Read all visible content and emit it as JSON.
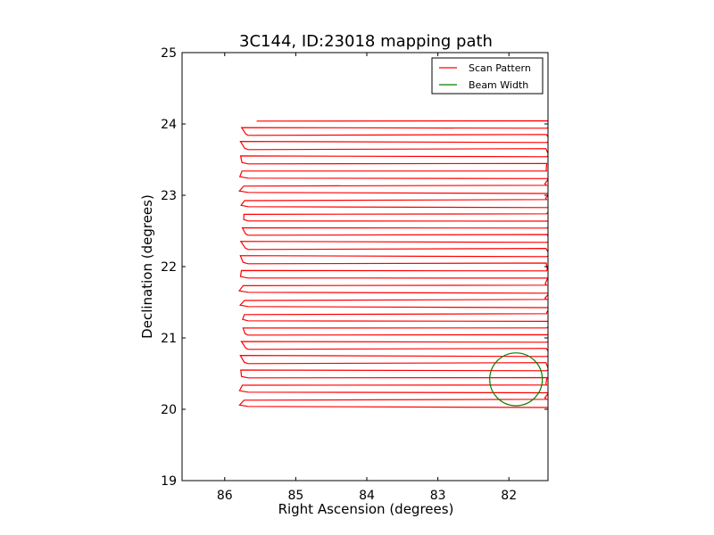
{
  "chart_data": {
    "type": "line",
    "title": "3C144, ID:23018 mapping path",
    "xlabel": "Right Ascension (degrees)",
    "ylabel": "Declination (degrees)",
    "xlim": [
      86.6,
      81.45
    ],
    "ylim": [
      19,
      25
    ],
    "x_inverted": true,
    "x_ticks": [
      86,
      85,
      84,
      83,
      82
    ],
    "x_tick_labels": [
      "86",
      "85",
      "84",
      "83",
      "82"
    ],
    "y_ticks": [
      19,
      20,
      21,
      22,
      23,
      24,
      25
    ],
    "y_tick_labels": [
      "19",
      "20",
      "21",
      "22",
      "23",
      "24",
      "25"
    ],
    "grid": false,
    "legend_position": "top-right",
    "legend": [
      {
        "label": "Scan Pattern",
        "color": "#ff0000"
      },
      {
        "label": "Beam Width",
        "color": "#007f00"
      }
    ],
    "series": [
      {
        "name": "Scan Pattern",
        "color": "#ff0000",
        "kind": "raster",
        "ra_left": 85.75,
        "ra_right": 81.45,
        "dec_start": 24.04,
        "dec_end": 19.99,
        "start_ra": 85.55,
        "row_spacing": 0.1,
        "rows": 41
      },
      {
        "name": "Beam Width",
        "color": "#007f00",
        "kind": "circle",
        "center_ra": 81.9,
        "center_dec": 20.42,
        "radius_deg": 0.37
      }
    ]
  }
}
